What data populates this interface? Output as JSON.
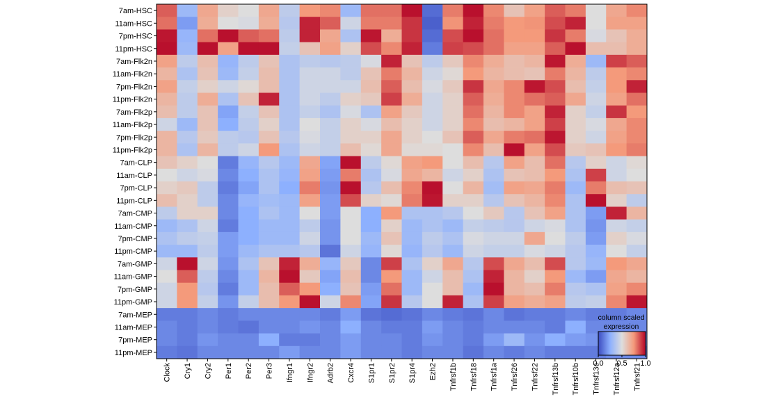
{
  "chart_data": {
    "type": "heatmap",
    "title": "",
    "xlabel": "",
    "ylabel": "",
    "colormap": "coolwarm",
    "color_range": [
      0,
      1
    ],
    "rows": [
      "7am-HSC",
      "11am-HSC",
      "7pm-HSC",
      "11pm-HSC",
      "7am-Flk2n",
      "11am-Flk2n",
      "7pm-Flk2n",
      "11pm-Flk2n",
      "7am-Flk2p",
      "11am-Flk2p",
      "7pm-Flk2p",
      "11pm-Flk2p",
      "7am-CLP",
      "11am-CLP",
      "7pm-CLP",
      "11pm-CLP",
      "7am-CMP",
      "11am-CMP",
      "7pm-CMP",
      "11pm-CMP",
      "7am-GMP",
      "11am-GMP",
      "7pm-GMP",
      "11pm-GMP",
      "7am-MEP",
      "11am-MEP",
      "7pm-MEP",
      "11pm-MEP"
    ],
    "columns": [
      "Clock",
      "Cry1",
      "Cry2",
      "Per1",
      "Per2",
      "Per3",
      "Ifngr1",
      "Ifngr2",
      "Adrb2",
      "Cxcr4",
      "S1pr1",
      "S1pr2",
      "S1pr4",
      "Ezh2",
      "Tnfrsf1b",
      "Tnfrsf18",
      "Tnfrsf1a",
      "Tnfrsf26",
      "Tnfrsf22",
      "Tnfrsf13b",
      "Tnfrsf10b",
      "Tnfrsf13c",
      "Tnfrsf12a",
      "Tnfrsf21"
    ],
    "values": [
      [
        0.85,
        0.3,
        0.7,
        0.55,
        0.5,
        0.7,
        0.4,
        0.75,
        0.78,
        0.3,
        0.82,
        0.82,
        0.98,
        0.08,
        0.8,
        0.98,
        0.78,
        0.6,
        0.72,
        0.85,
        0.8,
        0.5,
        0.7,
        0.78
      ],
      [
        0.82,
        0.2,
        0.68,
        0.5,
        0.48,
        0.68,
        0.38,
        0.95,
        0.85,
        0.45,
        0.8,
        0.8,
        0.92,
        0.05,
        0.76,
        0.95,
        0.8,
        0.75,
        0.76,
        0.88,
        0.95,
        0.5,
        0.72,
        0.72
      ],
      [
        0.97,
        0.28,
        0.82,
        0.98,
        0.85,
        0.82,
        0.4,
        0.95,
        0.7,
        0.35,
        0.97,
        0.68,
        0.92,
        0.08,
        0.88,
        0.98,
        0.82,
        0.75,
        0.75,
        0.92,
        0.8,
        0.48,
        0.6,
        0.68
      ],
      [
        0.98,
        0.3,
        0.98,
        0.72,
        0.98,
        0.98,
        0.42,
        0.6,
        0.72,
        0.55,
        0.88,
        0.78,
        0.95,
        0.12,
        0.9,
        0.88,
        0.82,
        0.72,
        0.72,
        0.85,
        0.98,
        0.62,
        0.62,
        0.68
      ],
      [
        0.72,
        0.4,
        0.62,
        0.28,
        0.4,
        0.6,
        0.35,
        0.4,
        0.38,
        0.4,
        0.48,
        0.95,
        0.6,
        0.4,
        0.58,
        0.78,
        0.68,
        0.62,
        0.65,
        0.97,
        0.68,
        0.3,
        0.9,
        0.85
      ],
      [
        0.65,
        0.35,
        0.6,
        0.3,
        0.42,
        0.62,
        0.35,
        0.45,
        0.45,
        0.4,
        0.6,
        0.8,
        0.65,
        0.45,
        0.52,
        0.75,
        0.65,
        0.62,
        0.6,
        0.8,
        0.65,
        0.4,
        0.75,
        0.78
      ],
      [
        0.72,
        0.42,
        0.55,
        0.45,
        0.52,
        0.62,
        0.35,
        0.45,
        0.45,
        0.45,
        0.62,
        0.85,
        0.62,
        0.48,
        0.58,
        0.92,
        0.7,
        0.78,
        0.97,
        0.88,
        0.62,
        0.42,
        0.75,
        0.95
      ],
      [
        0.65,
        0.4,
        0.68,
        0.35,
        0.6,
        0.95,
        0.35,
        0.45,
        0.4,
        0.55,
        0.58,
        0.9,
        0.68,
        0.45,
        0.55,
        0.85,
        0.68,
        0.78,
        0.82,
        0.85,
        0.7,
        0.45,
        0.72,
        0.82
      ],
      [
        0.62,
        0.4,
        0.6,
        0.22,
        0.42,
        0.6,
        0.35,
        0.42,
        0.35,
        0.48,
        0.35,
        0.72,
        0.58,
        0.45,
        0.55,
        0.82,
        0.65,
        0.78,
        0.72,
        0.95,
        0.55,
        0.42,
        0.92,
        0.75
      ],
      [
        0.45,
        0.3,
        0.6,
        0.25,
        0.4,
        0.55,
        0.35,
        0.5,
        0.42,
        0.55,
        0.48,
        0.62,
        0.55,
        0.45,
        0.55,
        0.78,
        0.62,
        0.65,
        0.72,
        0.9,
        0.55,
        0.48,
        0.7,
        0.78
      ],
      [
        0.65,
        0.38,
        0.58,
        0.4,
        0.38,
        0.6,
        0.38,
        0.48,
        0.42,
        0.55,
        0.55,
        0.7,
        0.55,
        0.5,
        0.6,
        0.85,
        0.7,
        0.8,
        0.82,
        0.97,
        0.55,
        0.45,
        0.72,
        0.78
      ],
      [
        0.65,
        0.35,
        0.65,
        0.4,
        0.45,
        0.75,
        0.35,
        0.45,
        0.42,
        0.62,
        0.52,
        0.7,
        0.52,
        0.52,
        0.5,
        0.78,
        0.62,
        0.98,
        0.72,
        0.88,
        0.58,
        0.6,
        0.75,
        0.8
      ],
      [
        0.6,
        0.55,
        0.5,
        0.12,
        0.28,
        0.38,
        0.3,
        0.7,
        0.22,
        0.98,
        0.4,
        0.52,
        0.72,
        0.75,
        0.5,
        0.62,
        0.38,
        0.72,
        0.62,
        0.82,
        0.38,
        0.55,
        0.45,
        0.52
      ],
      [
        0.5,
        0.45,
        0.48,
        0.15,
        0.25,
        0.35,
        0.28,
        0.72,
        0.2,
        0.8,
        0.35,
        0.48,
        0.7,
        0.65,
        0.45,
        0.55,
        0.35,
        0.6,
        0.62,
        0.75,
        0.35,
        0.9,
        0.45,
        0.5
      ],
      [
        0.55,
        0.58,
        0.4,
        0.12,
        0.22,
        0.35,
        0.25,
        0.8,
        0.18,
        0.98,
        0.38,
        0.62,
        0.78,
        0.98,
        0.5,
        0.65,
        0.32,
        0.72,
        0.7,
        0.8,
        0.3,
        0.8,
        0.62,
        0.6
      ],
      [
        0.62,
        0.55,
        0.4,
        0.15,
        0.28,
        0.32,
        0.3,
        0.72,
        0.2,
        0.88,
        0.55,
        0.52,
        0.8,
        0.97,
        0.55,
        0.55,
        0.38,
        0.6,
        0.65,
        0.78,
        0.35,
        0.98,
        0.55,
        0.4
      ],
      [
        0.4,
        0.55,
        0.55,
        0.15,
        0.25,
        0.35,
        0.3,
        0.5,
        0.2,
        0.5,
        0.25,
        0.75,
        0.35,
        0.35,
        0.38,
        0.5,
        0.58,
        0.38,
        0.6,
        0.72,
        0.35,
        0.2,
        0.95,
        0.65
      ],
      [
        0.3,
        0.35,
        0.45,
        0.12,
        0.25,
        0.3,
        0.3,
        0.4,
        0.18,
        0.5,
        0.25,
        0.55,
        0.3,
        0.35,
        0.3,
        0.42,
        0.4,
        0.38,
        0.45,
        0.48,
        0.35,
        0.18,
        0.45,
        0.42
      ],
      [
        0.35,
        0.4,
        0.42,
        0.2,
        0.25,
        0.3,
        0.3,
        0.45,
        0.18,
        0.5,
        0.3,
        0.6,
        0.3,
        0.4,
        0.35,
        0.48,
        0.45,
        0.45,
        0.7,
        0.5,
        0.4,
        0.2,
        0.55,
        0.48
      ],
      [
        0.3,
        0.3,
        0.4,
        0.2,
        0.3,
        0.35,
        0.35,
        0.38,
        0.1,
        0.45,
        0.28,
        0.52,
        0.28,
        0.38,
        0.3,
        0.45,
        0.42,
        0.42,
        0.48,
        0.45,
        0.38,
        0.28,
        0.5,
        0.42
      ],
      [
        0.45,
        0.98,
        0.45,
        0.18,
        0.35,
        0.6,
        0.95,
        0.68,
        0.28,
        0.58,
        0.15,
        0.9,
        0.35,
        0.55,
        0.7,
        0.38,
        0.88,
        0.7,
        0.62,
        0.88,
        0.38,
        0.3,
        0.75,
        0.7
      ],
      [
        0.5,
        0.85,
        0.4,
        0.15,
        0.3,
        0.65,
        0.98,
        0.58,
        0.22,
        0.62,
        0.15,
        0.75,
        0.3,
        0.45,
        0.62,
        0.35,
        0.95,
        0.65,
        0.55,
        0.75,
        0.3,
        0.2,
        0.7,
        0.65
      ],
      [
        0.45,
        0.75,
        0.38,
        0.12,
        0.3,
        0.62,
        0.85,
        0.75,
        0.25,
        0.6,
        0.2,
        0.82,
        0.3,
        0.5,
        0.62,
        0.3,
        0.98,
        0.65,
        0.62,
        0.8,
        0.38,
        0.35,
        0.72,
        0.78
      ],
      [
        0.45,
        0.75,
        0.42,
        0.18,
        0.42,
        0.62,
        0.75,
        0.98,
        0.45,
        0.78,
        0.22,
        0.92,
        0.38,
        0.5,
        0.95,
        0.35,
        0.9,
        0.72,
        0.68,
        0.72,
        0.4,
        0.42,
        0.78,
        0.97
      ],
      [
        0.12,
        0.12,
        0.15,
        0.12,
        0.15,
        0.15,
        0.15,
        0.15,
        0.12,
        0.2,
        0.1,
        0.08,
        0.1,
        0.15,
        0.12,
        0.1,
        0.15,
        0.1,
        0.12,
        0.12,
        0.15,
        0.12,
        0.12,
        0.15
      ],
      [
        0.15,
        0.12,
        0.15,
        0.12,
        0.1,
        0.15,
        0.15,
        0.18,
        0.15,
        0.25,
        0.15,
        0.12,
        0.12,
        0.2,
        0.15,
        0.12,
        0.15,
        0.15,
        0.15,
        0.12,
        0.25,
        0.15,
        0.15,
        0.15
      ],
      [
        0.15,
        0.12,
        0.18,
        0.15,
        0.15,
        0.25,
        0.12,
        0.12,
        0.15,
        0.2,
        0.15,
        0.15,
        0.12,
        0.18,
        0.15,
        0.12,
        0.2,
        0.3,
        0.18,
        0.25,
        0.2,
        0.18,
        0.18,
        0.2
      ],
      [
        0.12,
        0.1,
        0.15,
        0.15,
        0.15,
        0.15,
        0.2,
        0.15,
        0.15,
        0.2,
        0.15,
        0.15,
        0.12,
        0.15,
        0.15,
        0.1,
        0.15,
        0.12,
        0.15,
        0.12,
        0.12,
        0.12,
        0.15,
        0.15
      ]
    ],
    "colorbar": {
      "title_lines": [
        "column scaled",
        "expression"
      ],
      "ticks": [
        "0.0",
        "0.5",
        "1.0"
      ]
    },
    "legend_position": "bottom-right",
    "grid": false
  }
}
